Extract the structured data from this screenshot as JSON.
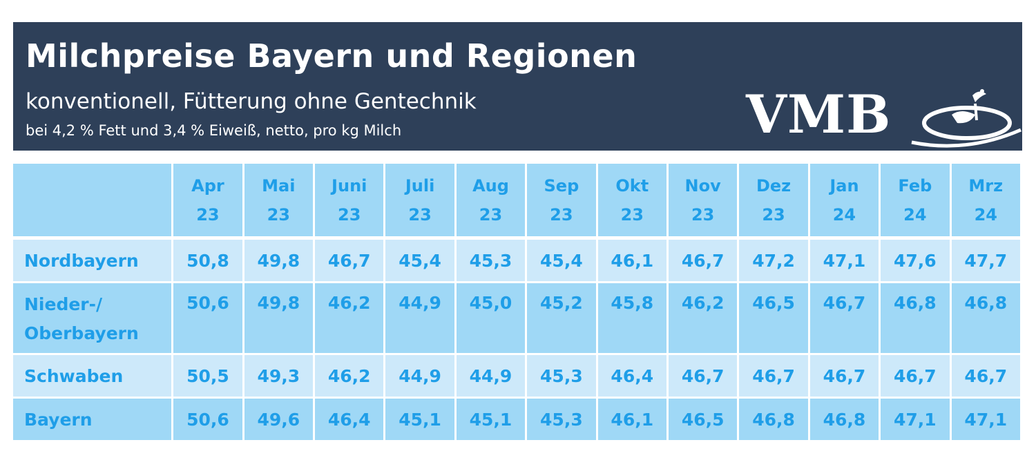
{
  "header": {
    "title": "Milchpreise Bayern und Regionen",
    "subtitle": "konventionell, Fütterung ohne Gentechnik",
    "note": "bei 4,2 % Fett und 3,4 % Eiweiß, netto, pro kg Milch",
    "logo_text": "VMB"
  },
  "chart_data": {
    "type": "table",
    "title": "Milchpreise Bayern und Regionen",
    "subtitle": "konventionell, Fütterung ohne Gentechnik",
    "columns": [
      {
        "month": "Apr",
        "year": "23"
      },
      {
        "month": "Mai",
        "year": "23"
      },
      {
        "month": "Juni",
        "year": "23"
      },
      {
        "month": "Juli",
        "year": "23"
      },
      {
        "month": "Aug",
        "year": "23"
      },
      {
        "month": "Sep",
        "year": "23"
      },
      {
        "month": "Okt",
        "year": "23"
      },
      {
        "month": "Nov",
        "year": "23"
      },
      {
        "month": "Dez",
        "year": "23"
      },
      {
        "month": "Jan",
        "year": "24"
      },
      {
        "month": "Feb",
        "year": "24"
      },
      {
        "month": "Mrz",
        "year": "24"
      }
    ],
    "rows": [
      {
        "label": [
          "Nordbayern"
        ],
        "values": [
          "50,8",
          "49,8",
          "46,7",
          "45,4",
          "45,3",
          "45,4",
          "46,1",
          "46,7",
          "47,2",
          "47,1",
          "47,6",
          "47,7"
        ]
      },
      {
        "label": [
          "Nieder-/",
          "Oberbayern"
        ],
        "values": [
          "50,6",
          "49,8",
          "46,2",
          "44,9",
          "45,0",
          "45,2",
          "45,8",
          "46,2",
          "46,5",
          "46,7",
          "46,8",
          "46,8"
        ]
      },
      {
        "label": [
          "Schwaben"
        ],
        "values": [
          "50,5",
          "49,3",
          "46,2",
          "44,9",
          "44,9",
          "45,3",
          "46,4",
          "46,7",
          "46,7",
          "46,7",
          "46,7",
          "46,7"
        ]
      },
      {
        "label": [
          "Bayern"
        ],
        "values": [
          "50,6",
          "49,6",
          "46,4",
          "45,1",
          "45,1",
          "45,3",
          "46,1",
          "46,5",
          "46,8",
          "46,8",
          "47,1",
          "47,1"
        ]
      }
    ]
  },
  "colors": {
    "header_bg": "#2e4059",
    "cell_dark": "#9fd8f6",
    "cell_light": "#cde9fa",
    "text": "#1f9ee8"
  }
}
